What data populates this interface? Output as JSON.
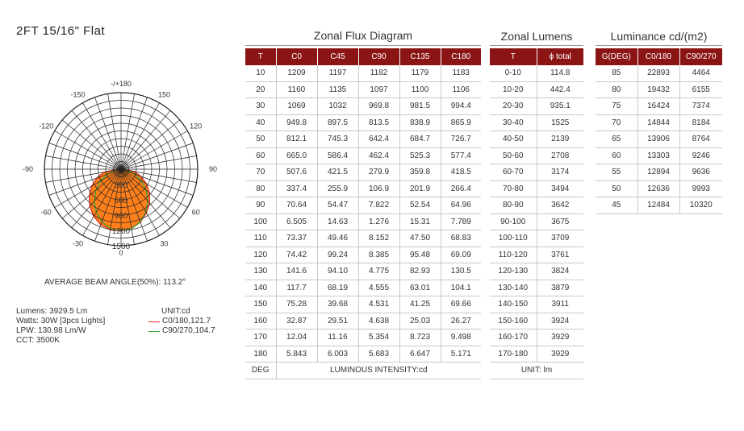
{
  "title": "2FT 15/16\" Flat",
  "polar": {
    "angle_labels": [
      "-/+180",
      "-150",
      "150",
      "-120",
      "120",
      "-90",
      "90",
      "-60",
      "60",
      "-30",
      "30",
      "0"
    ],
    "ring_labels": [
      "300",
      "600",
      "900",
      "1200",
      "1500"
    ],
    "colors": {
      "c0": "#e0281e",
      "c90": "#3aa33a",
      "fill": "#ff7f1a",
      "grid": "#222222"
    }
  },
  "beam_angle": "AVERAGE BEAM ANGLE(50%): 113.2°",
  "specs": {
    "lumens": "Lumens: 3929.5 Lm",
    "watts": "Watts: 30W [3pcs Lights]",
    "lpw": "LPW: 130.98 Lm/W",
    "cct": "CCT: 3500K"
  },
  "legend": {
    "unit": "UNIT:cd",
    "c0": "C0/180,121.7",
    "c90": "C90/270,104.7"
  },
  "chart_data": {
    "type": "polar",
    "title": "",
    "unit": "cd",
    "radial_ticks": [
      300,
      600,
      900,
      1200,
      1500
    ],
    "angle_ticks": [
      -180,
      -150,
      -120,
      -90,
      -60,
      -30,
      0,
      30,
      60,
      90,
      120,
      150,
      180
    ],
    "series": [
      {
        "name": "C0/180,121.7",
        "color": "#e0281e",
        "gamma": [
          0,
          10,
          20,
          30,
          40,
          50,
          60,
          70,
          80,
          90
        ],
        "cd_right": [
          1209,
          1183,
          1106,
          994.4,
          865.9,
          726.7,
          577.4,
          418.5,
          266.4,
          64.96
        ],
        "cd_left": [
          1209,
          1209,
          1160,
          1069,
          949.8,
          812.1,
          665.0,
          507.6,
          337.4,
          70.64
        ]
      },
      {
        "name": "C90/270,104.7",
        "color": "#3aa33a",
        "gamma": [
          0,
          10,
          20,
          30,
          40,
          50,
          60,
          70,
          80,
          90
        ],
        "cd": [
          1209,
          1182,
          1097,
          969.8,
          813.5,
          642.4,
          462.4,
          279.9,
          106.9,
          7.822
        ]
      }
    ]
  },
  "zonal_flux": {
    "title": "Zonal Flux Diagram",
    "headers": [
      "T",
      "C0",
      "C45",
      "C90",
      "C135",
      "C180"
    ],
    "rows": [
      [
        "10",
        "1209",
        "1197",
        "1182",
        "1179",
        "1183"
      ],
      [
        "20",
        "1160",
        "1135",
        "1097",
        "1100",
        "1106"
      ],
      [
        "30",
        "1069",
        "1032",
        "969.8",
        "981.5",
        "994.4"
      ],
      [
        "40",
        "949.8",
        "897.5",
        "813.5",
        "838.9",
        "865.9"
      ],
      [
        "50",
        "812.1",
        "745.3",
        "642.4",
        "684.7",
        "726.7"
      ],
      [
        "60",
        "665.0",
        "586.4",
        "462.4",
        "525.3",
        "577.4"
      ],
      [
        "70",
        "507.6",
        "421.5",
        "279.9",
        "359.8",
        "418.5"
      ],
      [
        "80",
        "337.4",
        "255.9",
        "106.9",
        "201.9",
        "266.4"
      ],
      [
        "90",
        "70.64",
        "54.47",
        "7.822",
        "52.54",
        "64.96"
      ],
      [
        "100",
        "6.505",
        "14.63",
        "1.276",
        "15.31",
        "7.789"
      ],
      [
        "110",
        "73.37",
        "49.46",
        "8.152",
        "47.50",
        "68.83"
      ],
      [
        "120",
        "74.42",
        "99.24",
        "8.385",
        "95.48",
        "69.09"
      ],
      [
        "130",
        "141.6",
        "94.10",
        "4.775",
        "82.93",
        "130.5"
      ],
      [
        "140",
        "117.7",
        "68.19",
        "4.555",
        "63.01",
        "104.1"
      ],
      [
        "150",
        "75.28",
        "39.68",
        "4.531",
        "41.25",
        "69.66"
      ],
      [
        "160",
        "32.87",
        "29.51",
        "4.638",
        "25.03",
        "26.27"
      ],
      [
        "170",
        "12.04",
        "11.16",
        "5.354",
        "8.723",
        "9.498"
      ],
      [
        "180",
        "5.843",
        "6.003",
        "5.683",
        "6.647",
        "5.171"
      ]
    ],
    "footer_left": "DEG",
    "footer_right": "LUMINOUS INTENSITY:cd"
  },
  "zonal_lumens": {
    "title": "Zonal Lumens",
    "headers": [
      "T",
      "ϕ total"
    ],
    "rows": [
      [
        "0-10",
        "114.8"
      ],
      [
        "10-20",
        "442.4"
      ],
      [
        "20-30",
        "935.1"
      ],
      [
        "30-40",
        "1525"
      ],
      [
        "40-50",
        "2139"
      ],
      [
        "50-60",
        "2708"
      ],
      [
        "60-70",
        "3174"
      ],
      [
        "70-80",
        "3494"
      ],
      [
        "80-90",
        "3642"
      ],
      [
        "90-100",
        "3675"
      ],
      [
        "100-110",
        "3709"
      ],
      [
        "110-120",
        "3761"
      ],
      [
        "120-130",
        "3824"
      ],
      [
        "130-140",
        "3879"
      ],
      [
        "140-150",
        "3911"
      ],
      [
        "150-160",
        "3924"
      ],
      [
        "160-170",
        "3929"
      ],
      [
        "170-180",
        "3929"
      ]
    ],
    "footer": "UNIT: lm"
  },
  "luminance": {
    "title": "Luminance cd/(m2)",
    "headers": [
      "G(DEG)",
      "C0/180",
      "C90/270"
    ],
    "rows": [
      [
        "85",
        "22893",
        "4464"
      ],
      [
        "80",
        "19432",
        "6155"
      ],
      [
        "75",
        "16424",
        "7374"
      ],
      [
        "70",
        "14844",
        "8184"
      ],
      [
        "65",
        "13906",
        "8764"
      ],
      [
        "60",
        "13303",
        "9246"
      ],
      [
        "55",
        "12894",
        "9636"
      ],
      [
        "50",
        "12636",
        "9993"
      ],
      [
        "45",
        "12484",
        "10320"
      ]
    ]
  }
}
